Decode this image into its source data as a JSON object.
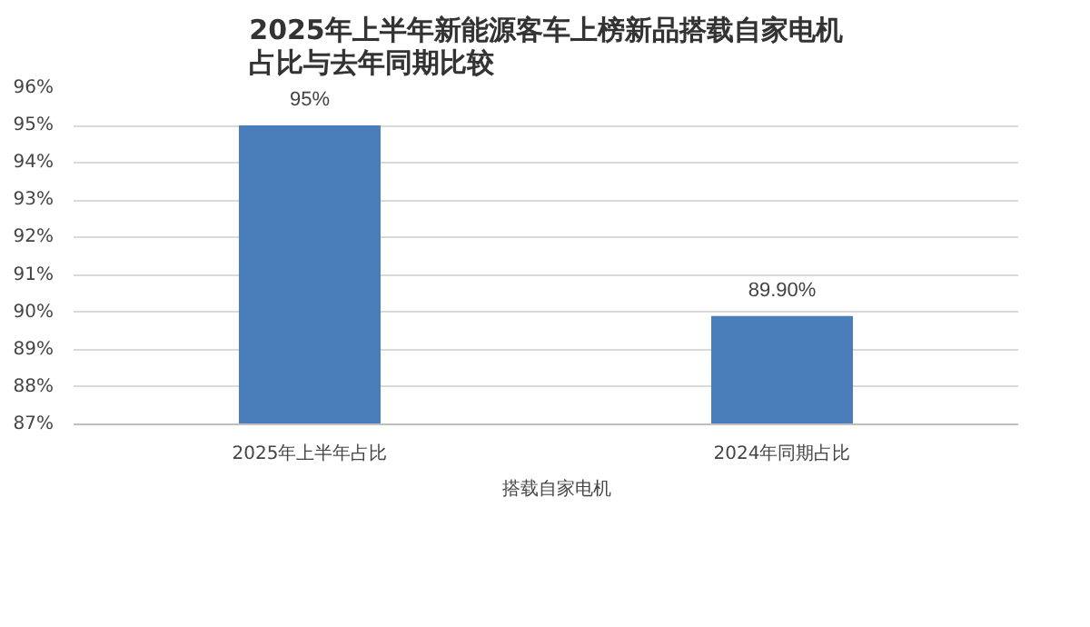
{
  "chart_data": {
    "type": "bar",
    "title": "2025年上半年新能源客车上榜新品搭载自家电机占比与去年同期比较",
    "categories": [
      "2025年上半年占比",
      "2024年同期占比"
    ],
    "series": [
      {
        "name": "搭载自家电机",
        "color": "#4a7ebb",
        "values": [
          95,
          89.9
        ],
        "value_labels": [
          "95%",
          "89.90%"
        ]
      }
    ],
    "ylim": [
      87,
      96
    ],
    "yticks": [
      {
        "value": 87,
        "label": "87%"
      },
      {
        "value": 88,
        "label": "88%"
      },
      {
        "value": 89,
        "label": "89%"
      },
      {
        "value": 90,
        "label": "90%"
      },
      {
        "value": 91,
        "label": "91%"
      },
      {
        "value": 92,
        "label": "92%"
      },
      {
        "value": 93,
        "label": "93%"
      },
      {
        "value": 94,
        "label": "94%"
      },
      {
        "value": 95,
        "label": "95%"
      },
      {
        "value": 96,
        "label": "96%"
      }
    ],
    "grid": "y",
    "legend": "bottom"
  }
}
